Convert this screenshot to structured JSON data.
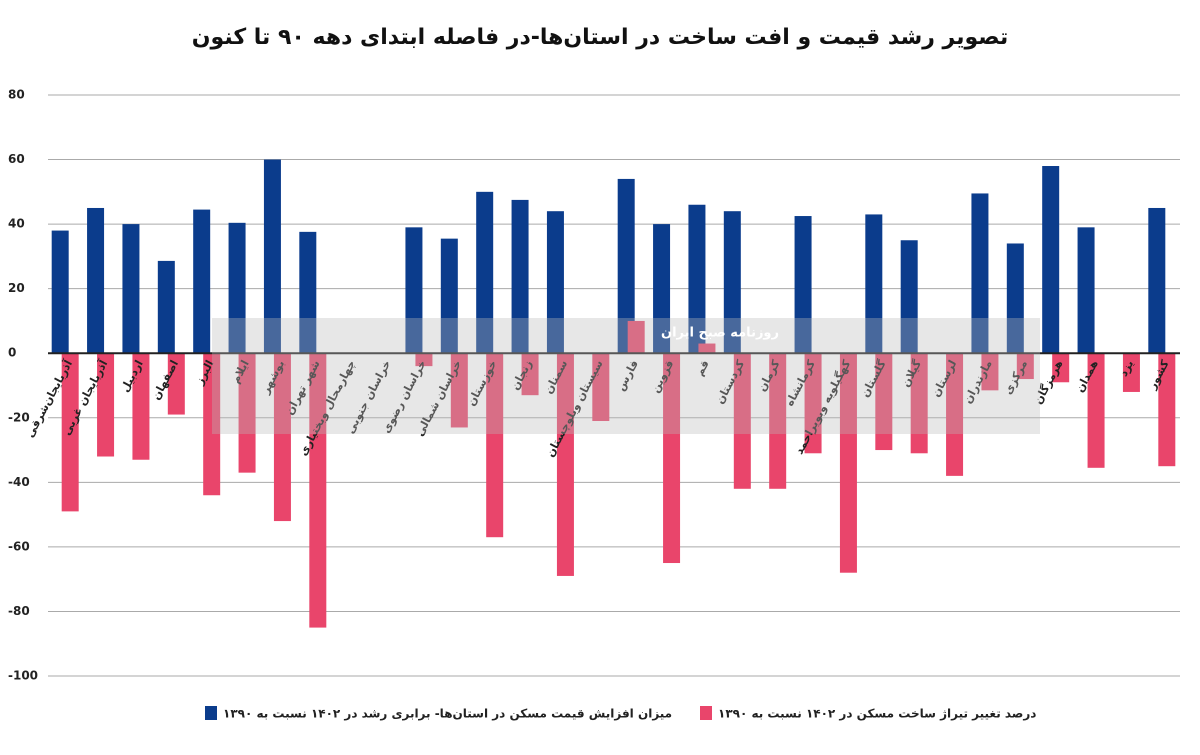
{
  "chart_data": {
    "type": "bar",
    "title": "تصویر رشد قیمت و افت ساخت در استان‌ها-در فاصله ابتدای دهه ۹۰ تا کنون",
    "watermark": "روزنامه صبح ایران",
    "categories": [
      "آذربایجان‌شرقی",
      "آذربایجان غربی",
      "اردبیل",
      "اصفهان",
      "البرز",
      "ایلام",
      "بوشهر",
      "شهر تهران",
      "چهارمحال وبختیاری",
      "خراسان جنوبی",
      "خراسان رضوی",
      "خراسان شمالی",
      "خوزستان",
      "زنجان",
      "سمنان",
      "سیستان وبلوچستان",
      "فارس",
      "قزوین",
      "قم",
      "کردستان",
      "کرمان",
      "کرمانشاه",
      "کهگیلویه وبویراحمد",
      "گلستان",
      "گیلان",
      "لرستان",
      "مازندران",
      "مرکزی",
      "هرمزگان",
      "همدان",
      "یزد",
      "کشور"
    ],
    "series": [
      {
        "name": "میزان افزایش قیمت مسکن در استان‌ها- برابری رشد در ۱۴۰۲ نسبت به ۱۳۹۰",
        "color": "#0b3c8c",
        "values": [
          38,
          45,
          40,
          28.6,
          44.5,
          40.4,
          60,
          37.6,
          null,
          null,
          39,
          35.5,
          50,
          47.5,
          44,
          null,
          54,
          40,
          46,
          44,
          null,
          42.5,
          null,
          43,
          35,
          null,
          49.5,
          34,
          58,
          39,
          null,
          45
        ]
      },
      {
        "name": "درصد تغییر تیراژ ساخت مسکن در ۱۴۰۲ نسبت به ۱۳۹۰",
        "color": "#e9456b",
        "values": [
          -49,
          -32,
          -33,
          -19,
          -44,
          -37,
          -52,
          -85,
          null,
          null,
          -4,
          -23,
          -57,
          -13,
          -69,
          -21,
          10,
          -65,
          3,
          -42,
          -42,
          -31,
          -68,
          -30,
          -31,
          -38,
          -11.5,
          -8,
          -9,
          -35.5,
          -12,
          -35
        ]
      }
    ],
    "ylim": [
      -100,
      80
    ],
    "yticks": [
      80,
      60,
      40,
      20,
      0,
      -20,
      -40,
      -60,
      -80,
      -100
    ],
    "grid": true,
    "legend": "bottom"
  }
}
